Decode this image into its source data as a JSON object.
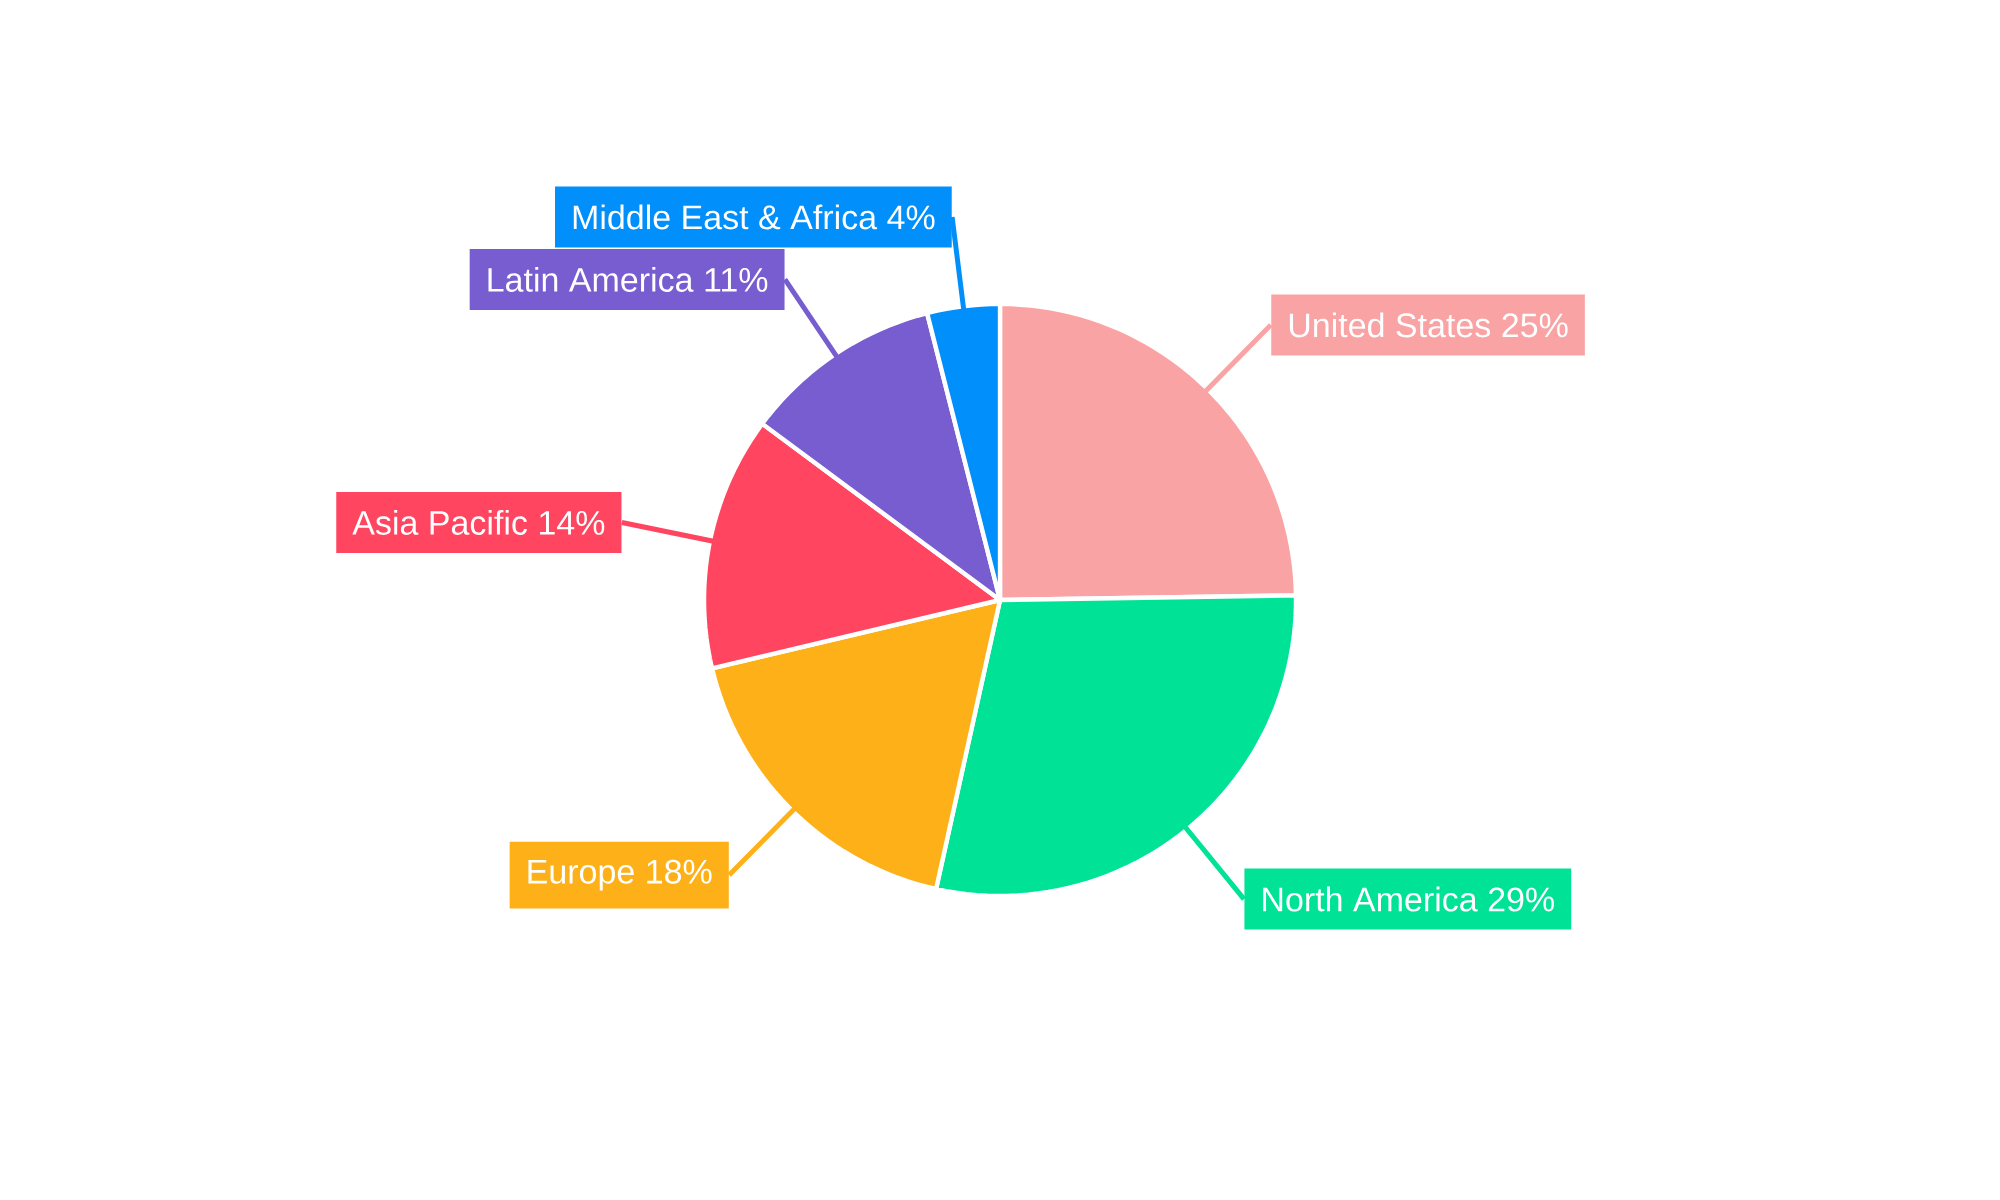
{
  "chart_data": {
    "type": "pie",
    "categories": [
      "United States",
      "North America",
      "Europe",
      "Asia Pacific",
      "Latin America",
      "Middle East & Africa"
    ],
    "values": [
      25,
      29,
      18,
      14,
      11,
      4
    ],
    "value_labels": [
      "25%",
      "29%",
      "18%",
      "14%",
      "11%",
      "4%"
    ],
    "colors": [
      "#f9a3a5",
      "#00e396",
      "#feb019",
      "#ff4560",
      "#775dd0",
      "#008ffb"
    ]
  }
}
